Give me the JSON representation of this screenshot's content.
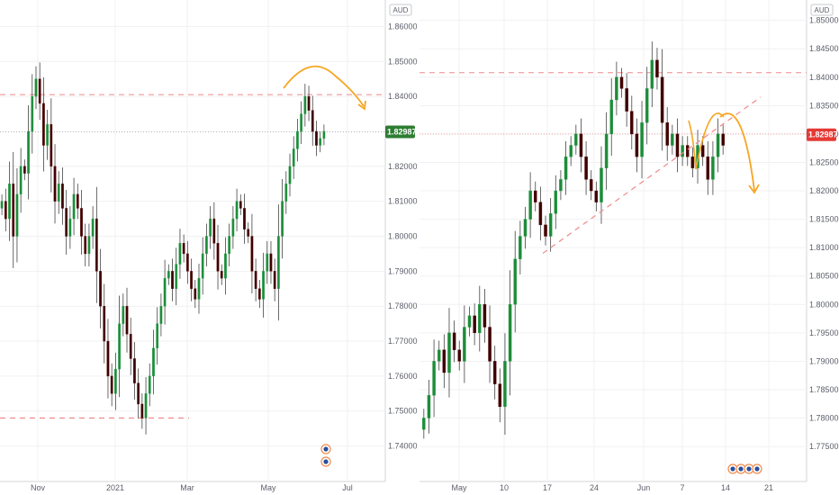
{
  "chart_data": [
    {
      "type": "candlestick",
      "currency": "AUD",
      "ylim": [
        1.735,
        1.865
      ],
      "y_ticks": [
        "1.86000",
        "1.85000",
        "1.84000",
        "1.82000",
        "1.81000",
        "1.80000",
        "1.79000",
        "1.78000",
        "1.77000",
        "1.76000",
        "1.75000",
        "1.74000"
      ],
      "x_ticks": [
        "Nov",
        "2021",
        "Mar",
        "May",
        "Jul"
      ],
      "last_price": "1.82987",
      "last_price_color": "#2e7d32",
      "resistance_level": 1.8405,
      "support_level": 1.748,
      "series": [
        1.81,
        1.805,
        1.815,
        1.8,
        1.812,
        1.82,
        1.818,
        1.83,
        1.84,
        1.845,
        1.838,
        1.826,
        1.832,
        1.82,
        1.81,
        1.815,
        1.808,
        1.8,
        1.805,
        1.812,
        1.808,
        1.8,
        1.795,
        1.8,
        1.805,
        1.79,
        1.78,
        1.77,
        1.76,
        1.755,
        1.762,
        1.775,
        1.78,
        1.772,
        1.765,
        1.758,
        1.752,
        1.748,
        1.755,
        1.76,
        1.768,
        1.775,
        1.78,
        1.788,
        1.79,
        1.785,
        1.792,
        1.798,
        1.795,
        1.79,
        1.785,
        1.782,
        1.788,
        1.795,
        1.8,
        1.805,
        1.798,
        1.79,
        1.788,
        1.795,
        1.8,
        1.805,
        1.81,
        1.808,
        1.802,
        1.8,
        1.79,
        1.785,
        1.782,
        1.79,
        1.795,
        1.79,
        1.785,
        1.8,
        1.81,
        1.815,
        1.82,
        1.825,
        1.83,
        1.835,
        1.84,
        1.836,
        1.83,
        1.826,
        1.828,
        1.83
      ]
    },
    {
      "type": "candlestick",
      "currency": "AUD",
      "ylim": [
        1.772,
        1.852
      ],
      "y_ticks": [
        "1.85000",
        "1.84500",
        "1.84000",
        "1.83500",
        "1.83000",
        "1.82500",
        "1.82000",
        "1.81500",
        "1.81000",
        "1.80500",
        "1.80000",
        "1.79500",
        "1.79000",
        "1.78500",
        "1.78000",
        "1.77500"
      ],
      "x_ticks": [
        "May",
        "10",
        "17",
        "24",
        "Jun",
        "7",
        "14",
        "21"
      ],
      "last_price": "1.82987",
      "last_price_color": "#e53935",
      "resistance_level": 1.8408,
      "current_level": 1.83,
      "series": [
        1.78,
        1.784,
        1.79,
        1.792,
        1.788,
        1.795,
        1.792,
        1.79,
        1.796,
        1.798,
        1.795,
        1.8,
        1.796,
        1.79,
        1.786,
        1.782,
        1.79,
        1.8,
        1.808,
        1.812,
        1.815,
        1.82,
        1.818,
        1.814,
        1.812,
        1.816,
        1.82,
        1.822,
        1.826,
        1.828,
        1.83,
        1.826,
        1.822,
        1.82,
        1.818,
        1.824,
        1.83,
        1.836,
        1.84,
        1.838,
        1.834,
        1.83,
        1.826,
        1.832,
        1.838,
        1.843,
        1.84,
        1.832,
        1.828,
        1.83,
        1.826,
        1.828,
        1.826,
        1.824,
        1.828,
        1.826,
        1.822,
        1.826,
        1.83,
        1.828
      ]
    }
  ]
}
